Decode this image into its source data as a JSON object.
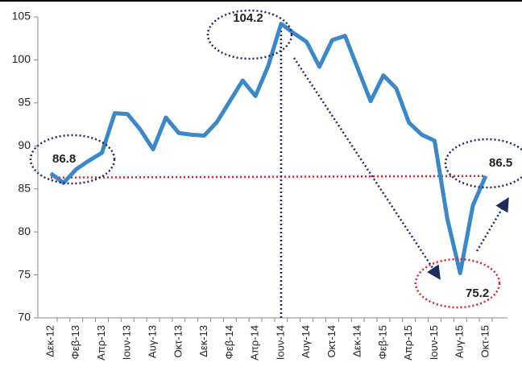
{
  "chart_data": {
    "type": "line",
    "categories": [
      "Δεκ-12",
      null,
      "Φεβ-13",
      null,
      "Απρ-13",
      null,
      "Ιουν-13",
      null,
      "Αυγ-13",
      null,
      "Οκτ-13",
      null,
      "Δεκ-13",
      null,
      "Φεβ-14",
      null,
      "Απρ-14",
      null,
      "Ιουν-14",
      null,
      "Αυγ-14",
      null,
      "Οκτ-14",
      null,
      "Δεκ-14",
      null,
      "Φεβ-15",
      null,
      "Απρ-15",
      null,
      "Ιουν-15",
      null,
      "Αυγ-15",
      null,
      "Οκτ-15"
    ],
    "series": [
      {
        "color": "#3a87cc",
        "values": [
          86.8,
          85.7,
          87.3,
          88.3,
          89.2,
          93.8,
          93.7,
          91.9,
          89.6,
          93.3,
          91.5,
          91.3,
          91.2,
          92.8,
          95.2,
          97.6,
          95.8,
          99.3,
          104.2,
          103.1,
          102.1,
          99.2,
          102.3,
          102.8,
          99.0,
          95.2,
          98.2,
          96.7,
          92.7,
          91.3,
          90.6,
          81.5,
          75.2,
          83.1,
          86.5
        ]
      }
    ],
    "ylim": [
      70,
      105
    ],
    "yticks": [
      70,
      75,
      80,
      85,
      90,
      95,
      100,
      105
    ],
    "annotations": [
      "86.8",
      "104.2",
      "86.5",
      "75.2"
    ]
  }
}
